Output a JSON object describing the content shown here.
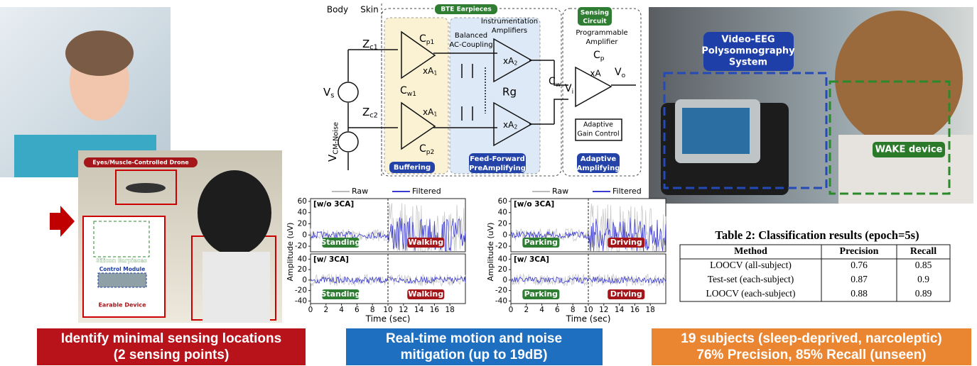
{
  "left": {
    "drone_label": "Eyes/Muscle-Controlled Drone",
    "earpieces_label": "Silicon Earpieces",
    "module_label": "Control Module",
    "device_label": "Earable Device",
    "caption": [
      "Identify minimal sensing locations",
      "(2 sensing points)"
    ]
  },
  "circuit": {
    "body": "Body",
    "skin": "Skin",
    "bte": "BTE Earpieces",
    "zc1": {
      "main": "Z",
      "sub": "c1"
    },
    "zc2": {
      "main": "Z",
      "sub": "c2"
    },
    "vs": {
      "main": "V",
      "sub": "s"
    },
    "vcm": {
      "main": "V",
      "sub": "CM-Noise"
    },
    "cp1": {
      "main": "C",
      "sub": "p1"
    },
    "cp2": {
      "main": "C",
      "sub": "p2"
    },
    "cw1": {
      "main": "C",
      "sub": "w1"
    },
    "xa1": {
      "main": "xA",
      "sub": "1"
    },
    "xa2": {
      "main": "xA",
      "sub": "2"
    },
    "balanced": [
      "Balanced",
      "AC-Coupling"
    ],
    "instr": [
      "Instrumentation",
      "Amplifiers"
    ],
    "rg": "Rg",
    "cw": {
      "main": "C",
      "sub": "w"
    },
    "sensing": [
      "Sensing",
      "Circuit"
    ],
    "prog": [
      "Programmable",
      "Amplifier"
    ],
    "cp": {
      "main": "C",
      "sub": "p"
    },
    "xa": "xA",
    "vi": {
      "main": "V",
      "sub": "i"
    },
    "vo": {
      "main": "V",
      "sub": "o"
    },
    "agc": [
      "Adaptive",
      "Gain Control"
    ],
    "buffering": "Buffering",
    "feed": [
      "Feed-Forward",
      "PreAmplifying"
    ],
    "adaptive": [
      "Adaptive",
      "Amplifying"
    ]
  },
  "plots": [
    {
      "legend": [
        "Raw",
        "Filtered"
      ],
      "ylabel": "Amplitude (uV)",
      "xlabel": "Time (sec)",
      "xlim": [
        0,
        20
      ],
      "xticks": [
        0,
        2,
        4,
        6,
        8,
        10,
        12,
        14,
        16,
        18
      ],
      "divider": 10,
      "panels": [
        {
          "title": "[w/o 3CA]",
          "left": "Standing",
          "right": "Walking",
          "ylim": [
            -30,
            65
          ],
          "yticks": [
            60,
            40,
            20,
            0,
            -20
          ]
        },
        {
          "title": "[w/ 3CA]",
          "left": "Standing",
          "right": "Walking",
          "ylim": [
            -45,
            50
          ],
          "yticks": [
            40,
            20,
            0,
            -20,
            -40
          ]
        }
      ]
    },
    {
      "legend": [
        "Raw",
        "Filtered"
      ],
      "ylabel": "Amplitude (uV)",
      "xlabel": "Time (sec)",
      "xlim": [
        0,
        20
      ],
      "xticks": [
        0,
        2,
        4,
        6,
        8,
        10,
        12,
        14,
        16,
        18
      ],
      "divider": 10,
      "panels": [
        {
          "title": "[w/o 3CA]",
          "left": "Parking",
          "right": "Driving",
          "ylim": [
            -30,
            65
          ],
          "yticks": [
            60,
            40,
            20,
            0,
            -20
          ]
        },
        {
          "title": "[w/ 3CA]",
          "left": "Parking",
          "right": "Driving",
          "ylim": [
            -45,
            50
          ],
          "yticks": [
            40,
            20,
            0,
            -20,
            -40
          ]
        }
      ]
    }
  ],
  "middle_caption": [
    "Real-time motion and noise",
    "mitigation (up to 19dB)"
  ],
  "right": {
    "system_label": [
      "Video-EEG",
      "Polysomnography",
      "System"
    ],
    "device_label": "WAKE device",
    "caption": [
      "19 subjects (sleep-deprived, narcoleptic)",
      "76% Precision, 85% Recall (unseen)"
    ]
  },
  "table": {
    "title": "Table 2: Classification results (epoch=5s)",
    "header": [
      "Method",
      "Precision",
      "Recall"
    ],
    "rows": [
      [
        "LOOCV (all-subject)",
        0.76,
        0.85
      ],
      [
        "Test-set (each-subject)",
        0.87,
        0.9
      ],
      [
        "LOOCV (each-subject)",
        0.88,
        0.89
      ]
    ]
  }
}
